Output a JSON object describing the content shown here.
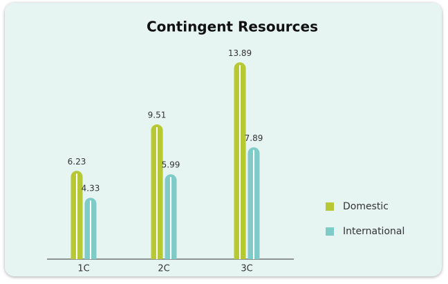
{
  "chart_data": {
    "type": "bar",
    "title": "Contingent Resources",
    "categories": [
      "1C",
      "2C",
      "3C"
    ],
    "series": [
      {
        "name": "Domestic",
        "color": "#b6c935",
        "values": [
          6.23,
          9.51,
          13.89
        ]
      },
      {
        "name": "International",
        "color": "#7ecbc7",
        "values": [
          4.33,
          5.99,
          7.89
        ]
      }
    ],
    "legend": "right"
  }
}
